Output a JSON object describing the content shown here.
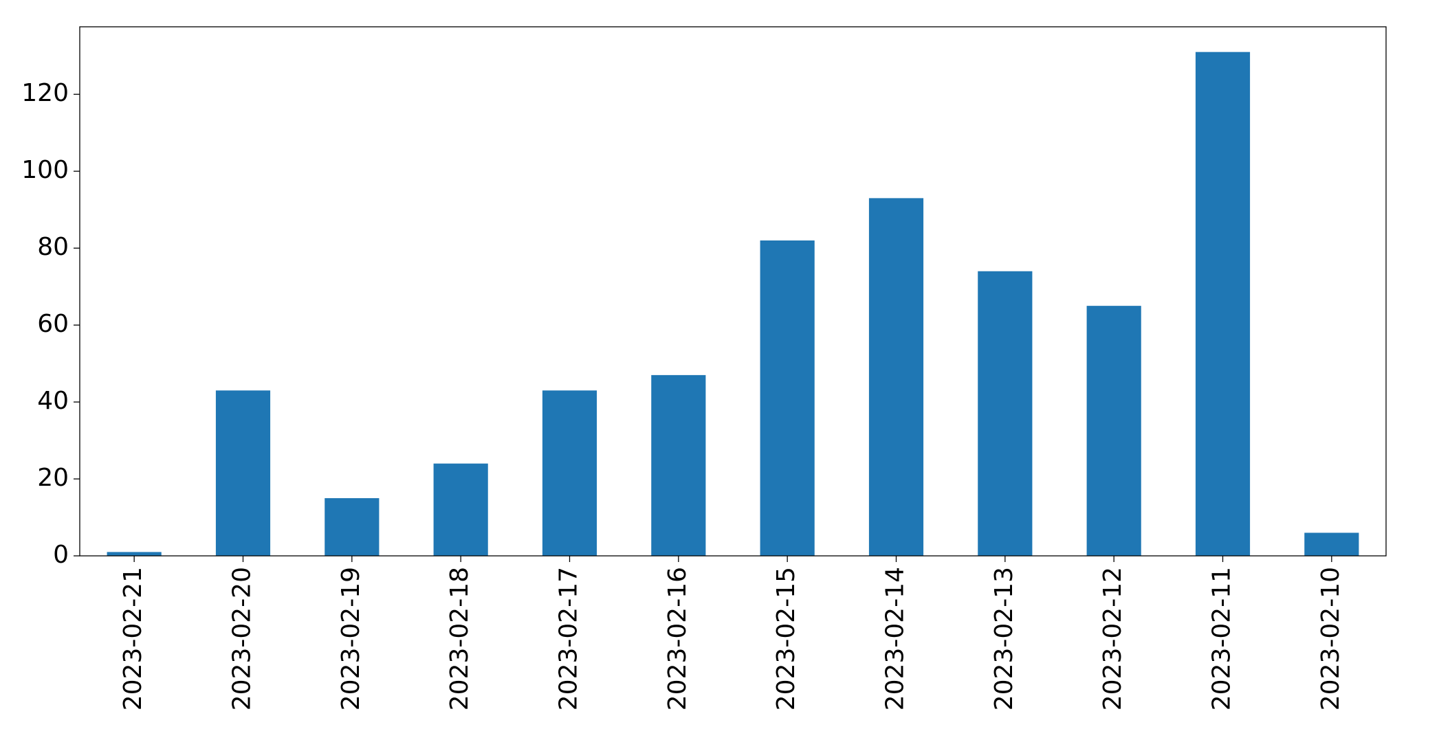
{
  "chart_data": {
    "type": "bar",
    "categories": [
      "2023-02-21",
      "2023-02-20",
      "2023-02-19",
      "2023-02-18",
      "2023-02-17",
      "2023-02-16",
      "2023-02-15",
      "2023-02-14",
      "2023-02-13",
      "2023-02-12",
      "2023-02-11",
      "2023-02-10"
    ],
    "values": [
      1,
      43,
      15,
      24,
      43,
      47,
      82,
      93,
      74,
      65,
      131,
      6
    ],
    "color": "#1f77b4",
    "ylim": [
      0,
      137.55
    ],
    "yticks": [
      0,
      20,
      40,
      60,
      80,
      100,
      120
    ],
    "grid": false
  }
}
